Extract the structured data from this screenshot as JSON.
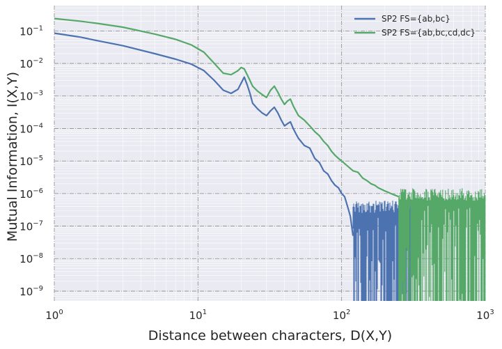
{
  "chart_data": {
    "type": "line",
    "title": "",
    "xlabel": "Distance between characters, D(X,Y)",
    "ylabel": "Mutual Information, I(X,Y)",
    "xscale": "log",
    "yscale": "log",
    "xlim": [
      1,
      1000
    ],
    "ylim": [
      5e-10,
      0.6
    ],
    "grid": true,
    "legend_position": "top-right",
    "x_ticks": [
      {
        "base": "10",
        "exp": "0",
        "value": 1
      },
      {
        "base": "10",
        "exp": "1",
        "value": 10
      },
      {
        "base": "10",
        "exp": "2",
        "value": 100
      },
      {
        "base": "10",
        "exp": "3",
        "value": 1000
      }
    ],
    "y_ticks": [
      {
        "base": "10",
        "exp": "−1",
        "value": 0.1
      },
      {
        "base": "10",
        "exp": "−2",
        "value": 0.01
      },
      {
        "base": "10",
        "exp": "−3",
        "value": 0.001
      },
      {
        "base": "10",
        "exp": "−4",
        "value": 0.0001
      },
      {
        "base": "10",
        "exp": "−5",
        "value": 1e-05
      },
      {
        "base": "10",
        "exp": "−6",
        "value": 1e-06
      },
      {
        "base": "10",
        "exp": "−7",
        "value": 1e-07
      },
      {
        "base": "10",
        "exp": "−8",
        "value": 1e-08
      },
      {
        "base": "10",
        "exp": "−9",
        "value": 1e-09
      }
    ],
    "series": [
      {
        "name": "SP2 FS={ab,bc}",
        "color": "#4c72b0",
        "x": [
          1,
          1.5,
          2,
          3,
          5,
          7,
          9,
          11,
          13,
          15,
          17,
          19,
          20,
          21,
          22,
          23,
          24,
          26,
          28,
          30,
          32,
          34,
          36,
          38,
          40,
          42,
          44,
          46,
          48,
          50,
          55,
          60,
          65,
          70,
          75,
          80,
          85,
          90,
          95,
          100,
          105,
          110,
          115,
          120
        ],
        "y": [
          0.085,
          0.065,
          0.05,
          0.035,
          0.02,
          0.0135,
          0.0095,
          0.006,
          0.003,
          0.0015,
          0.0012,
          0.0016,
          0.0025,
          0.0038,
          0.0022,
          0.0012,
          0.0006,
          0.0004,
          0.0003,
          0.00025,
          0.00035,
          0.00045,
          0.0003,
          0.00018,
          0.00012,
          0.00014,
          0.00016,
          0.0001,
          7e-05,
          5e-05,
          3e-05,
          2.5e-05,
          1.2e-05,
          9e-06,
          5e-06,
          4e-06,
          2.5e-06,
          1.8e-06,
          1.5e-06,
          1e-06,
          8e-07,
          4e-07,
          2e-07,
          5e-08
        ]
      },
      {
        "name": "SP2 FS={ab,bc,cd,dc}",
        "color": "#55a868",
        "x": [
          1,
          1.5,
          2,
          3,
          5,
          7,
          9,
          11,
          13,
          15,
          17,
          19,
          20,
          21,
          22,
          23,
          24,
          26,
          28,
          30,
          32,
          34,
          36,
          38,
          40,
          42,
          44,
          46,
          48,
          50,
          55,
          60,
          65,
          70,
          75,
          80,
          85,
          90,
          95,
          100,
          110,
          120,
          130,
          140,
          150,
          160,
          170,
          180,
          200,
          220,
          250
        ],
        "y": [
          0.24,
          0.2,
          0.17,
          0.13,
          0.08,
          0.055,
          0.037,
          0.022,
          0.01,
          0.005,
          0.0045,
          0.006,
          0.0075,
          0.0068,
          0.0045,
          0.003,
          0.002,
          0.0014,
          0.0011,
          0.0009,
          0.0015,
          0.002,
          0.0013,
          0.0008,
          0.00055,
          0.0007,
          0.0008,
          0.0005,
          0.00035,
          0.00025,
          0.00018,
          0.00012,
          8e-05,
          6e-05,
          4e-05,
          3e-05,
          2e-05,
          1.5e-05,
          1.2e-05,
          1e-05,
          7e-06,
          5e-06,
          4.5e-06,
          3e-06,
          2.5e-06,
          2e-06,
          1.8e-06,
          1.5e-06,
          1.2e-06,
          1e-06,
          8e-07
        ]
      }
    ]
  }
}
